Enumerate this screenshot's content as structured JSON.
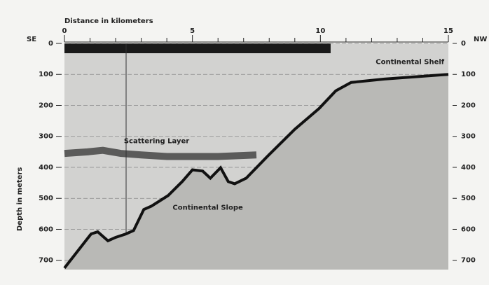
{
  "chart_data": {
    "type": "area",
    "xlabel": "Distance in kilometers",
    "ylabel": "Depth in meters",
    "left_end_label": "SE",
    "right_end_label": "NW",
    "xlim": [
      0,
      15
    ],
    "xticks": [
      0,
      5,
      10,
      15
    ],
    "xminorticks": [
      1,
      2,
      3,
      4,
      6,
      7,
      8,
      9,
      11,
      12,
      13,
      14
    ],
    "ylim": [
      0,
      730
    ],
    "yticks": [
      0,
      100,
      200,
      300,
      400,
      500,
      600,
      700
    ],
    "y_reversed": true,
    "grid": true,
    "series": [
      {
        "color": "#111111",
        "x": [
          0,
          1.04,
          1.3,
          1.7,
          2.0,
          2.4,
          2.7,
          3.1,
          3.4,
          4.05,
          4.6,
          5.0,
          5.4,
          5.7,
          6.1,
          6.4,
          6.65,
          7.1,
          7.9,
          9.0,
          9.95,
          10.6,
          11.2,
          12.5,
          15
        ],
        "values": [
          725,
          615,
          608,
          637,
          626,
          615,
          604,
          536,
          525,
          491,
          446,
          408,
          412,
          435,
          401,
          446,
          453,
          435,
          367,
          277,
          210,
          153,
          126,
          115,
          100
        ]
      },
      {
        "color": "#333333",
        "x": [
          0,
          0.9,
          1.5,
          2.2,
          3.0,
          4.0,
          5.0,
          6.0,
          7.5
        ],
        "values": [
          355,
          350,
          345,
          355,
          360,
          365,
          365,
          365,
          360
        ]
      }
    ],
    "annotations": [
      {
        "text": "Continental Shelf",
        "x": 13.5,
        "y": 60
      },
      {
        "text": "Scattering Layer",
        "x": 3.6,
        "y": 315
      },
      {
        "text": "Continental Slope",
        "x": 5.6,
        "y": 530
      }
    ]
  }
}
